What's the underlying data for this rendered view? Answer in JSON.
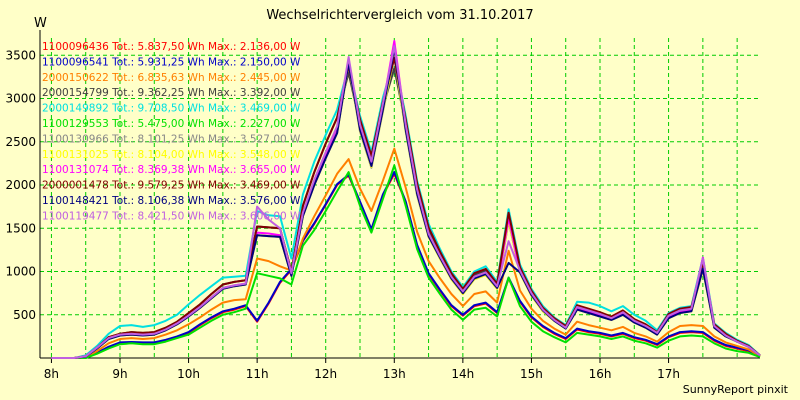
{
  "header": {
    "title": "Wechselrichtervergleich vom 31.10.2017",
    "unit": "W"
  },
  "footer": {
    "credit": "SunnyReport pinxit"
  },
  "colors": {
    "background": "#ffffc8",
    "grid": "#00cc00",
    "axis": "#000000"
  },
  "chart_data": {
    "type": "line",
    "title": "Wechselrichtervergleich vom 31.10.2017",
    "ylabel": "W",
    "xlabel": "",
    "x_ticks": [
      "8h",
      "9h",
      "10h",
      "11h",
      "12h",
      "13h",
      "14h",
      "15h",
      "16h",
      "17h"
    ],
    "y_ticks": [
      500,
      1000,
      1500,
      2000,
      2500,
      3000,
      3500
    ],
    "xlim": [
      "07:50",
      "18:20"
    ],
    "ylim": [
      0,
      3700
    ],
    "grid": true,
    "legend_position": "top-left",
    "x": [
      "08:00",
      "08:10",
      "08:20",
      "08:30",
      "08:40",
      "08:50",
      "09:00",
      "09:10",
      "09:20",
      "09:30",
      "09:40",
      "09:50",
      "10:00",
      "10:10",
      "10:20",
      "10:30",
      "10:40",
      "10:50",
      "11:00",
      "11:10",
      "11:20",
      "11:30",
      "11:40",
      "11:50",
      "12:00",
      "12:10",
      "12:20",
      "12:30",
      "12:40",
      "12:50",
      "13:00",
      "13:10",
      "13:20",
      "13:30",
      "13:40",
      "13:50",
      "14:00",
      "14:10",
      "14:20",
      "14:30",
      "14:40",
      "14:50",
      "15:00",
      "15:10",
      "15:20",
      "15:30",
      "15:40",
      "15:50",
      "16:00",
      "16:10",
      "16:20",
      "16:30",
      "16:40",
      "16:50",
      "17:00",
      "17:10",
      "17:20",
      "17:30",
      "17:40",
      "17:50",
      "18:00",
      "18:10",
      "18:20"
    ],
    "series": [
      {
        "name": "1100096436",
        "legend": "1100096436 Tot.: 5.837,50 Wh Max.: 2.136,00 W",
        "color": "#ff0000",
        "values": [
          0,
          0,
          0,
          0,
          60,
          120,
          170,
          175,
          170,
          170,
          200,
          240,
          290,
          380,
          460,
          530,
          560,
          600,
          420,
          630,
          870,
          1020,
          1350,
          1550,
          1770,
          2000,
          2110,
          1800,
          1480,
          1880,
          2130,
          1800,
          1300,
          970,
          780,
          600,
          490,
          600,
          630,
          520,
          920,
          650,
          470,
          360,
          280,
          220,
          330,
          300,
          280,
          250,
          280,
          230,
          200,
          150,
          240,
          290,
          300,
          290,
          200,
          140,
          110,
          80,
          20
        ]
      },
      {
        "name": "1100096541",
        "legend": "1100096541 Tot.: 5.931,25 Wh Max.: 2.150,00 W",
        "color": "#0000c8",
        "values": [
          0,
          0,
          0,
          0,
          60,
          130,
          180,
          185,
          180,
          180,
          210,
          250,
          300,
          390,
          470,
          540,
          570,
          610,
          430,
          640,
          880,
          1030,
          1360,
          1560,
          1780,
          2010,
          2120,
          1810,
          1490,
          1890,
          2150,
          1810,
          1310,
          980,
          790,
          610,
          500,
          610,
          640,
          530,
          930,
          660,
          480,
          370,
          290,
          230,
          340,
          310,
          290,
          260,
          290,
          240,
          210,
          160,
          250,
          300,
          310,
          300,
          210,
          150,
          120,
          90,
          20
        ]
      },
      {
        "name": "2000150622",
        "legend": "2000150622 Tot.: 6.835,63 Wh Max.: 2.445,00 W",
        "color": "#ff7f00",
        "values": [
          0,
          0,
          0,
          10,
          80,
          170,
          220,
          230,
          220,
          230,
          270,
          320,
          390,
          470,
          560,
          640,
          670,
          680,
          1150,
          1120,
          1060,
          1010,
          1380,
          1640,
          1880,
          2130,
          2300,
          1960,
          1700,
          2050,
          2420,
          1970,
          1460,
          1120,
          920,
          740,
          600,
          740,
          770,
          640,
          1240,
          780,
          570,
          430,
          340,
          270,
          420,
          380,
          350,
          320,
          360,
          290,
          250,
          190,
          300,
          370,
          380,
          370,
          250,
          180,
          140,
          100,
          20
        ]
      },
      {
        "name": "2000154799",
        "legend": "2000154799 Tot.: 9.362,25 Wh Max.: 3.392,00 W",
        "color": "#404040",
        "values": [
          0,
          0,
          0,
          20,
          120,
          240,
          280,
          300,
          290,
          300,
          350,
          420,
          520,
          620,
          740,
          850,
          880,
          900,
          1520,
          1510,
          1500,
          1000,
          1760,
          2150,
          2480,
          2780,
          3300,
          2700,
          2300,
          2900,
          3350,
          2700,
          1980,
          1480,
          1210,
          960,
          780,
          960,
          1010,
          840,
          1650,
          1030,
          760,
          570,
          450,
          360,
          600,
          560,
          520,
          470,
          540,
          440,
          380,
          290,
          500,
          560,
          580,
          1100,
          380,
          270,
          200,
          140,
          30
        ]
      },
      {
        "name": "2000149892",
        "legend": "2000149892 Tot.: 9.708,50 Wh Max.: 3.469,00 W",
        "color": "#00e0e0",
        "values": [
          0,
          0,
          0,
          30,
          140,
          280,
          370,
          380,
          360,
          380,
          430,
          500,
          620,
          730,
          830,
          930,
          940,
          950,
          1700,
          1650,
          1640,
          1150,
          1890,
          2270,
          2580,
          2870,
          3380,
          2800,
          2380,
          3010,
          3469,
          2800,
          2050,
          1550,
          1260,
          1000,
          820,
          1000,
          1060,
          880,
          1720,
          1080,
          800,
          600,
          470,
          380,
          650,
          640,
          600,
          540,
          600,
          500,
          430,
          320,
          520,
          580,
          600,
          1160,
          400,
          290,
          210,
          150,
          30
        ]
      },
      {
        "name": "1100129553",
        "legend": "1100129553 Tot.: 5.475,00 Wh Max.: 2.227,00 W",
        "color": "#00e000",
        "values": [
          0,
          0,
          0,
          0,
          50,
          110,
          160,
          170,
          160,
          160,
          190,
          230,
          270,
          350,
          430,
          500,
          530,
          570,
          980,
          950,
          920,
          850,
          1300,
          1480,
          1700,
          1930,
          2150,
          1760,
          1450,
          1840,
          2227,
          1760,
          1260,
          930,
          740,
          560,
          440,
          560,
          580,
          480,
          930,
          600,
          420,
          310,
          240,
          180,
          290,
          270,
          250,
          220,
          250,
          200,
          170,
          120,
          200,
          250,
          260,
          250,
          170,
          110,
          80,
          60,
          10
        ]
      },
      {
        "name": "1100130966",
        "legend": "1100130966 Tot.: 8.101,25 Wh Max.: 3.527,00 W",
        "color": "#888888",
        "values": [
          0,
          0,
          0,
          15,
          110,
          220,
          260,
          270,
          260,
          270,
          320,
          390,
          480,
          580,
          690,
          800,
          830,
          850,
          1420,
          1410,
          1400,
          950,
          1640,
          2000,
          2310,
          2600,
          3400,
          2620,
          2200,
          2850,
          3480,
          2620,
          1880,
          1400,
          1150,
          910,
          740,
          910,
          960,
          800,
          1580,
          980,
          720,
          540,
          430,
          340,
          560,
          520,
          480,
          440,
          500,
          410,
          350,
          270,
          460,
          520,
          540,
          1020,
          350,
          250,
          190,
          130,
          30
        ]
      },
      {
        "name": "1100131025",
        "legend": "1100131025 Tot.: 8.104,00 Wh Max.: 3.548,00 W",
        "color": "#ffff00",
        "values": [
          0,
          0,
          0,
          15,
          110,
          220,
          260,
          270,
          260,
          270,
          320,
          390,
          480,
          580,
          690,
          800,
          830,
          850,
          1420,
          1410,
          1400,
          950,
          1640,
          2000,
          2310,
          2600,
          3410,
          2630,
          2210,
          2860,
          3500,
          2630,
          1890,
          1400,
          1150,
          910,
          740,
          910,
          960,
          800,
          1590,
          980,
          720,
          540,
          430,
          340,
          560,
          520,
          480,
          440,
          500,
          410,
          350,
          270,
          460,
          520,
          540,
          1020,
          350,
          250,
          190,
          130,
          30
        ]
      },
      {
        "name": "1100131074",
        "legend": "1100131074 Tot.: 8.369,38 Wh Max.: 3.665,00 W",
        "color": "#ff00ff",
        "values": [
          0,
          0,
          0,
          20,
          120,
          230,
          270,
          280,
          270,
          280,
          330,
          400,
          490,
          590,
          700,
          810,
          840,
          860,
          1450,
          1440,
          1420,
          960,
          1670,
          2040,
          2360,
          2660,
          3460,
          2680,
          2250,
          2920,
          3665,
          2680,
          1930,
          1430,
          1170,
          930,
          760,
          930,
          980,
          820,
          1620,
          1000,
          740,
          550,
          440,
          350,
          580,
          540,
          500,
          450,
          520,
          420,
          360,
          280,
          480,
          540,
          560,
          1160,
          360,
          260,
          190,
          130,
          30
        ]
      },
      {
        "name": "2000001478",
        "legend": "2000001478 Tot.: 9.579,25 Wh Max.: 3.469,00 W",
        "color": "#800000",
        "values": [
          0,
          0,
          0,
          20,
          120,
          240,
          280,
          300,
          290,
          300,
          350,
          420,
          520,
          620,
          740,
          850,
          880,
          900,
          1520,
          1510,
          1500,
          1000,
          1760,
          2150,
          2480,
          2780,
          3380,
          2760,
          2340,
          2960,
          3469,
          2760,
          2020,
          1510,
          1230,
          980,
          800,
          980,
          1030,
          860,
          1680,
          1050,
          780,
          580,
          460,
          370,
          610,
          570,
          530,
          480,
          550,
          450,
          390,
          300,
          510,
          570,
          590,
          1110,
          390,
          280,
          200,
          140,
          30
        ]
      },
      {
        "name": "1100148421",
        "legend": "1100148421 Tot.: 8.106,38 Wh Max.: 3.576,00 W",
        "color": "#000080",
        "values": [
          0,
          0,
          0,
          15,
          110,
          220,
          260,
          270,
          260,
          270,
          320,
          390,
          480,
          580,
          690,
          800,
          830,
          850,
          1420,
          1410,
          1400,
          950,
          1640,
          2000,
          2310,
          2600,
          3420,
          2640,
          2220,
          2870,
          3576,
          2640,
          1900,
          1410,
          1160,
          920,
          750,
          920,
          970,
          810,
          1100,
          990,
          730,
          550,
          430,
          340,
          560,
          520,
          480,
          440,
          500,
          410,
          350,
          270,
          460,
          520,
          540,
          1030,
          350,
          250,
          190,
          130,
          30
        ]
      },
      {
        "name": "1100119477",
        "legend": "1100119477 Tot.: 8.421,50 Wh Max.: 3.606,00 W",
        "color": "#c060e0",
        "values": [
          0,
          0,
          0,
          20,
          120,
          230,
          270,
          280,
          270,
          280,
          330,
          400,
          490,
          590,
          700,
          810,
          840,
          860,
          1750,
          1600,
          1500,
          980,
          1680,
          2060,
          2380,
          2680,
          3480,
          2700,
          2270,
          2940,
          3606,
          2700,
          1950,
          1440,
          1180,
          940,
          770,
          940,
          990,
          830,
          1350,
          1010,
          750,
          560,
          440,
          350,
          590,
          550,
          510,
          460,
          530,
          430,
          370,
          290,
          490,
          550,
          570,
          1150,
          370,
          260,
          190,
          130,
          30
        ]
      }
    ]
  }
}
